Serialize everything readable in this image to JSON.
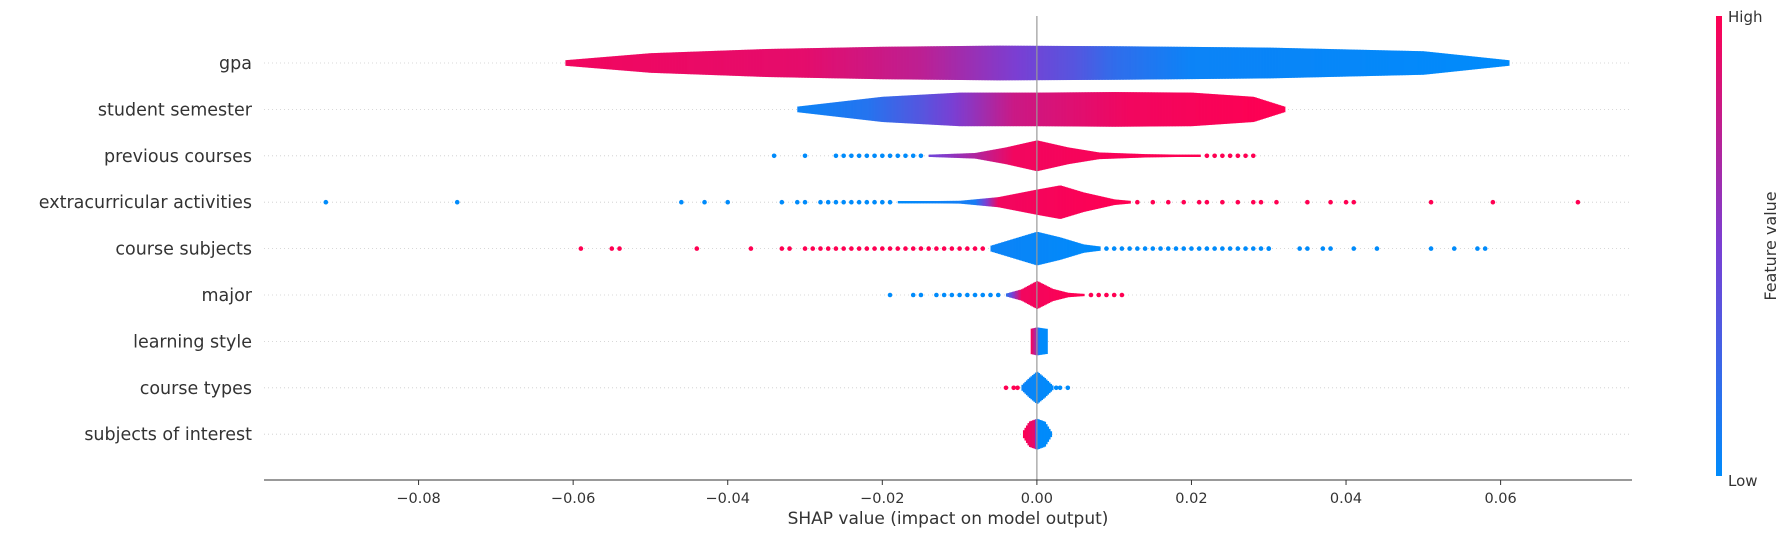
{
  "chart_data": {
    "type": "scatter",
    "subtype": "shap-violin-summary",
    "title": "",
    "xlabel": "SHAP value (impact on model output)",
    "ylabel": "",
    "xlim": [
      -0.1,
      0.077
    ],
    "xticks": [
      -0.08,
      -0.06,
      -0.04,
      -0.02,
      0.0,
      0.02,
      0.04,
      0.06
    ],
    "xtick_labels": [
      "−0.08",
      "−0.06",
      "−0.04",
      "−0.02",
      "0.00",
      "0.02",
      "0.04",
      "0.06"
    ],
    "grid": false,
    "colorbar": {
      "label": "Feature value",
      "high_label": "High",
      "low_label": "Low",
      "low_color": "#008bfb",
      "high_color": "#ff0052"
    },
    "features": [
      {
        "name": "gpa",
        "kind": "violin",
        "range": [
          -0.061,
          0.061
        ],
        "profile": [
          [
            -0.061,
            0.1
          ],
          [
            -0.05,
            0.35
          ],
          [
            -0.035,
            0.5
          ],
          [
            -0.02,
            0.58
          ],
          [
            -0.005,
            0.62
          ],
          [
            0.01,
            0.6
          ],
          [
            0.03,
            0.55
          ],
          [
            0.05,
            0.42
          ],
          [
            0.061,
            0.1
          ]
        ],
        "colors": [
          [
            -0.061,
            0.95
          ],
          [
            -0.03,
            0.9
          ],
          [
            -0.015,
            0.75
          ],
          [
            -0.005,
            0.55
          ],
          [
            0.005,
            0.35
          ],
          [
            0.01,
            0.2
          ],
          [
            0.02,
            0.05
          ],
          [
            0.061,
            0.0
          ]
        ],
        "points_low": [],
        "points_high": []
      },
      {
        "name": "student semester",
        "kind": "violin",
        "range": [
          -0.031,
          0.032
        ],
        "profile": [
          [
            -0.031,
            0.1
          ],
          [
            -0.02,
            0.45
          ],
          [
            -0.01,
            0.6
          ],
          [
            0.0,
            0.6
          ],
          [
            0.01,
            0.62
          ],
          [
            0.02,
            0.6
          ],
          [
            0.028,
            0.45
          ],
          [
            0.032,
            0.1
          ]
        ],
        "colors": [
          [
            -0.031,
            0.05
          ],
          [
            -0.022,
            0.15
          ],
          [
            -0.015,
            0.35
          ],
          [
            -0.008,
            0.6
          ],
          [
            -0.003,
            0.8
          ],
          [
            0.005,
            0.88
          ],
          [
            0.012,
            0.95
          ],
          [
            0.032,
            1.0
          ]
        ],
        "points_low": [],
        "points_high": []
      },
      {
        "name": "previous courses",
        "kind": "violin",
        "range": [
          -0.014,
          0.021
        ],
        "profile": [
          [
            -0.014,
            0.04
          ],
          [
            -0.008,
            0.1
          ],
          [
            -0.004,
            0.3
          ],
          [
            0.0,
            0.55
          ],
          [
            0.004,
            0.3
          ],
          [
            0.008,
            0.12
          ],
          [
            0.014,
            0.06
          ],
          [
            0.021,
            0.03
          ]
        ],
        "colors": [
          [
            -0.014,
            0.45
          ],
          [
            -0.008,
            0.7
          ],
          [
            -0.003,
            0.95
          ],
          [
            0.021,
            1.0
          ]
        ],
        "points_low": [
          -0.034,
          -0.03,
          -0.026,
          -0.025,
          -0.024,
          -0.023,
          -0.022,
          -0.021,
          -0.02,
          -0.019,
          -0.018,
          -0.017,
          -0.016,
          -0.015
        ],
        "points_high": [
          0.022,
          0.023,
          0.024,
          0.025,
          0.026,
          0.027,
          0.028
        ]
      },
      {
        "name": "extracurricular activities",
        "kind": "violin",
        "range": [
          -0.018,
          0.012
        ],
        "profile": [
          [
            -0.018,
            0.03
          ],
          [
            -0.01,
            0.05
          ],
          [
            -0.005,
            0.18
          ],
          [
            0.0,
            0.45
          ],
          [
            0.003,
            0.6
          ],
          [
            0.006,
            0.35
          ],
          [
            0.01,
            0.1
          ],
          [
            0.012,
            0.05
          ]
        ],
        "colors": [
          [
            -0.018,
            0.0
          ],
          [
            -0.008,
            0.1
          ],
          [
            -0.005,
            0.95
          ],
          [
            0.012,
            1.0
          ]
        ],
        "points_low": [
          -0.092,
          -0.075,
          -0.046,
          -0.043,
          -0.04,
          -0.033,
          -0.031,
          -0.03,
          -0.028,
          -0.027,
          -0.026,
          -0.025,
          -0.024,
          -0.023,
          -0.022,
          -0.021,
          -0.02,
          -0.019
        ],
        "points_high": [
          0.013,
          0.015,
          0.017,
          0.019,
          0.021,
          0.022,
          0.024,
          0.026,
          0.028,
          0.029,
          0.031,
          0.035,
          0.038,
          0.04,
          0.041,
          0.051,
          0.059,
          0.07
        ]
      },
      {
        "name": "course subjects",
        "kind": "violin",
        "range": [
          -0.006,
          0.008
        ],
        "profile": [
          [
            -0.006,
            0.1
          ],
          [
            -0.003,
            0.35
          ],
          [
            0.0,
            0.6
          ],
          [
            0.003,
            0.4
          ],
          [
            0.006,
            0.15
          ],
          [
            0.008,
            0.08
          ]
        ],
        "colors": [
          [
            -0.006,
            0.05
          ],
          [
            0.008,
            0.0
          ]
        ],
        "points_low": [
          0.009,
          0.01,
          0.011,
          0.012,
          0.013,
          0.014,
          0.015,
          0.016,
          0.017,
          0.018,
          0.019,
          0.02,
          0.021,
          0.022,
          0.023,
          0.024,
          0.025,
          0.026,
          0.027,
          0.028,
          0.029,
          0.03,
          0.03,
          0.034,
          0.035,
          0.037,
          0.038,
          0.041,
          0.044,
          0.051,
          0.054,
          0.057,
          0.058
        ],
        "points_high": [
          -0.059,
          -0.055,
          -0.054,
          -0.044,
          -0.037,
          -0.033,
          -0.032,
          -0.03,
          -0.029,
          -0.028,
          -0.027,
          -0.026,
          -0.025,
          -0.024,
          -0.023,
          -0.022,
          -0.021,
          -0.02,
          -0.019,
          -0.018,
          -0.017,
          -0.016,
          -0.015,
          -0.014,
          -0.013,
          -0.012,
          -0.011,
          -0.01,
          -0.009,
          -0.008,
          -0.007
        ]
      },
      {
        "name": "major",
        "kind": "violin",
        "range": [
          -0.004,
          0.006
        ],
        "profile": [
          [
            -0.004,
            0.05
          ],
          [
            -0.002,
            0.2
          ],
          [
            0.0,
            0.5
          ],
          [
            0.002,
            0.22
          ],
          [
            0.004,
            0.08
          ],
          [
            0.006,
            0.04
          ]
        ],
        "colors": [
          [
            -0.004,
            0.15
          ],
          [
            -0.002,
            0.95
          ],
          [
            0.006,
            1.0
          ]
        ],
        "points_low": [
          -0.019,
          -0.016,
          -0.015,
          -0.013,
          -0.012,
          -0.011,
          -0.01,
          -0.009,
          -0.008,
          -0.007,
          -0.006,
          -0.005
        ],
        "points_high": [
          0.007,
          0.008,
          0.009,
          0.01,
          0.011
        ]
      },
      {
        "name": "learning style",
        "kind": "violin",
        "range": [
          -0.0008,
          0.0012
        ],
        "profile": [
          [
            -0.0008,
            0.45
          ],
          [
            0.0,
            0.5
          ],
          [
            0.0012,
            0.45
          ]
        ],
        "colors": [
          [
            -0.0008,
            1.0
          ],
          [
            0.0,
            0.6
          ],
          [
            0.0003,
            0.0
          ],
          [
            0.0012,
            0.0
          ]
        ],
        "points_low": [],
        "points_high": []
      },
      {
        "name": "course types",
        "kind": "violin",
        "range": [
          -0.002,
          0.002
        ],
        "profile": [
          [
            -0.002,
            0.08
          ],
          [
            -0.001,
            0.35
          ],
          [
            0.0,
            0.58
          ],
          [
            0.001,
            0.35
          ],
          [
            0.002,
            0.08
          ]
        ],
        "colors": [
          [
            -0.002,
            0.05
          ],
          [
            0.002,
            0.0
          ]
        ],
        "points_low": [
          0.0025,
          0.003,
          0.004
        ],
        "points_high": [
          -0.004,
          -0.003,
          -0.0025
        ]
      },
      {
        "name": "subjects of interest",
        "kind": "violin",
        "range": [
          -0.0018,
          0.0018
        ],
        "profile": [
          [
            -0.0018,
            0.1
          ],
          [
            -0.001,
            0.45
          ],
          [
            0.0,
            0.55
          ],
          [
            0.001,
            0.45
          ],
          [
            0.0018,
            0.1
          ]
        ],
        "colors": [
          [
            -0.0018,
            1.0
          ],
          [
            -0.0003,
            0.9
          ],
          [
            0.0,
            0.0
          ],
          [
            0.0018,
            0.0
          ]
        ],
        "points_low": [],
        "points_high": []
      }
    ]
  }
}
